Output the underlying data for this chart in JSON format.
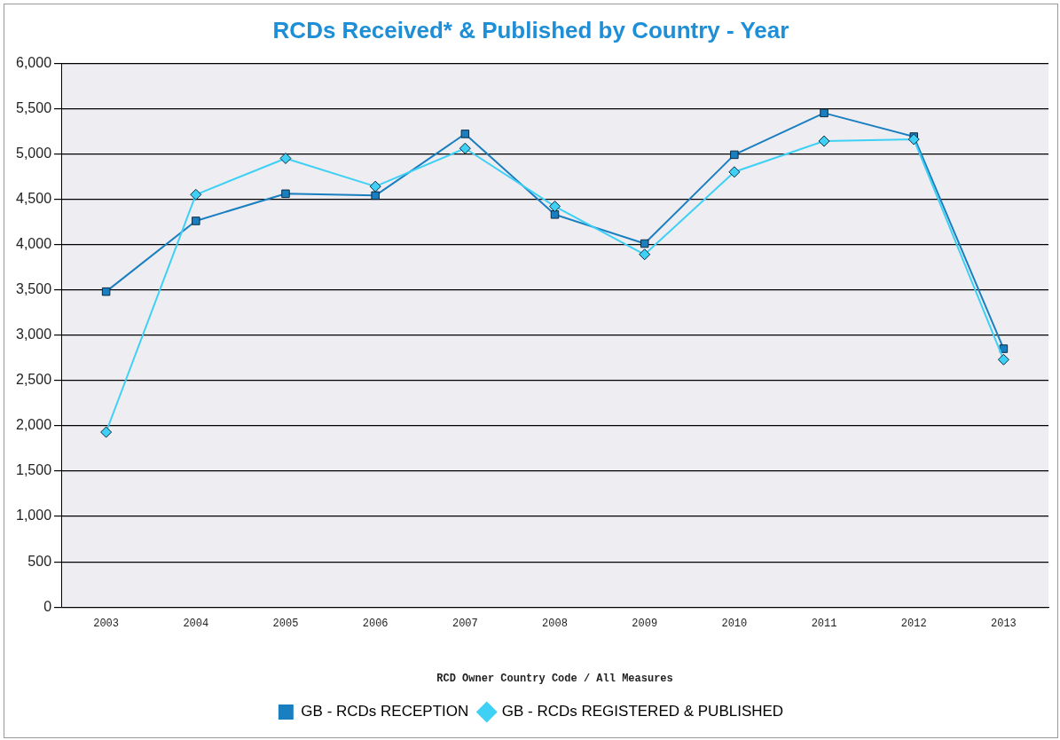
{
  "chart_data": {
    "type": "line",
    "title": "RCDs Received* & Published by Country - Year",
    "xlabel": "RCD Owner Country Code / All Measures",
    "categories": [
      "2003",
      "2004",
      "2005",
      "2006",
      "2007",
      "2008",
      "2009",
      "2010",
      "2011",
      "2012",
      "2013"
    ],
    "series": [
      {
        "name": "GB - RCDs RECEPTION",
        "color": "#1a7fc0",
        "marker": "square",
        "values": [
          3480,
          4260,
          4560,
          4540,
          5220,
          4330,
          4010,
          4990,
          5450,
          5190,
          2850
        ]
      },
      {
        "name": "GB - RCDs REGISTERED & PUBLISHED",
        "color": "#3fd0f5",
        "marker": "diamond",
        "values": [
          1930,
          4550,
          4950,
          4640,
          5060,
          4420,
          3890,
          4800,
          5140,
          5160,
          2730
        ]
      }
    ],
    "ylim": [
      0,
      6000
    ],
    "yticks": [
      0,
      500,
      {
        "value": 1000,
        "label": "1,000"
      },
      {
        "value": 1500,
        "label": "1,500"
      },
      {
        "value": 2000,
        "label": "2,000"
      },
      {
        "value": 2500,
        "label": "2,500"
      },
      {
        "value": 3000,
        "label": "3,000"
      },
      {
        "value": 3500,
        "label": "3,500"
      },
      {
        "value": 4000,
        "label": "4,000"
      },
      {
        "value": 4500,
        "label": "4,500"
      },
      {
        "value": 5000,
        "label": "5,000"
      },
      {
        "value": 5500,
        "label": "5,500"
      },
      {
        "value": 6000,
        "label": "6,000"
      }
    ],
    "grid": "y",
    "legend": "bottom"
  }
}
